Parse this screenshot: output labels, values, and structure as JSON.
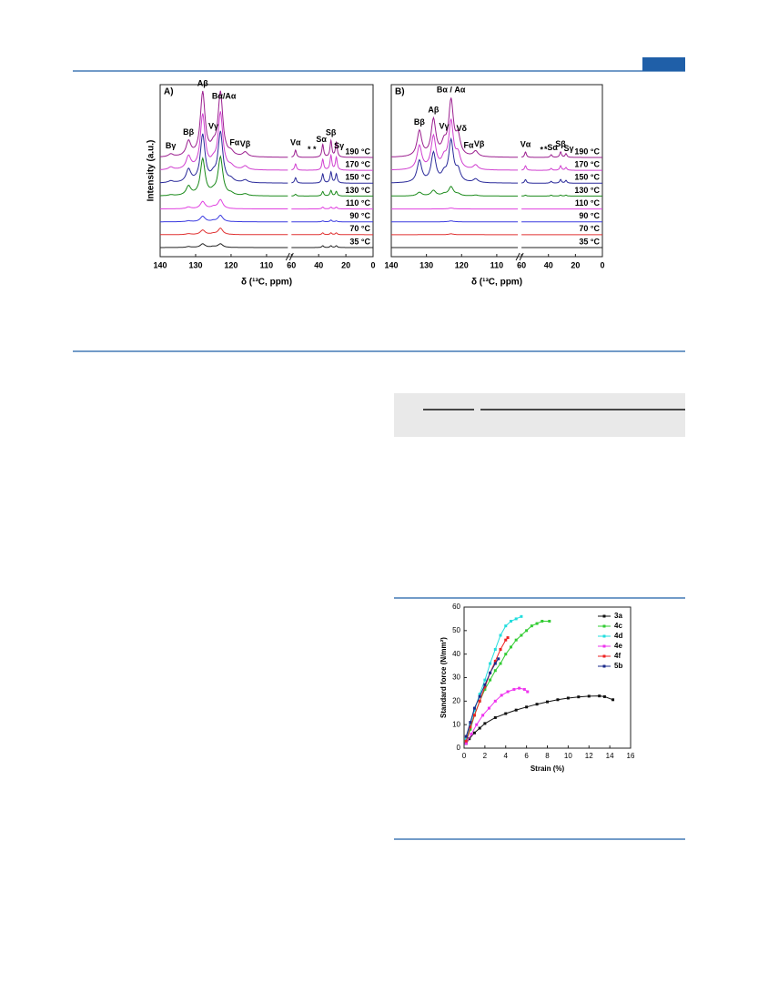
{
  "chart_data": [
    {
      "type": "spectrum",
      "panel": "A)",
      "y_label": "Intensity (a.u.)",
      "x_label": "δ (¹³C, ppm)",
      "xlim": [
        140,
        0
      ],
      "x_break": [
        104,
        60
      ],
      "xticks": [
        140,
        130,
        120,
        110,
        60,
        40,
        20,
        0
      ],
      "x": [
        137,
        132,
        128,
        125,
        123,
        120,
        116,
        57,
        37,
        31,
        27
      ],
      "series": [
        {
          "name": "190 °C",
          "color": "#9b1f8f",
          "values": [
            3,
            16,
            70,
            8,
            70,
            4,
            5,
            8,
            14,
            18,
            16
          ]
        },
        {
          "name": "170 °C",
          "color": "#d040d0",
          "values": [
            3,
            14,
            60,
            6,
            62,
            3,
            4,
            7,
            12,
            16,
            14
          ]
        },
        {
          "name": "150 °C",
          "color": "#2a2a9a",
          "values": [
            2,
            14,
            52,
            6,
            55,
            3,
            3,
            6,
            10,
            12,
            10
          ]
        },
        {
          "name": "130 °C",
          "color": "#1a8a1a",
          "values": [
            1,
            10,
            40,
            3,
            42,
            2,
            2,
            2,
            5,
            6,
            5
          ]
        },
        {
          "name": "110 °C",
          "color": "#e040e0",
          "values": [
            0,
            2,
            8,
            2,
            10,
            0,
            0,
            0,
            2,
            2,
            2
          ]
        },
        {
          "name": "90 °C",
          "color": "#3a3ae0",
          "values": [
            0,
            1,
            6,
            1,
            7,
            0,
            0,
            0,
            1,
            2,
            1
          ]
        },
        {
          "name": "70 °C",
          "color": "#e03030",
          "values": [
            0,
            1,
            5,
            1,
            7,
            0,
            0,
            0,
            2,
            2,
            2
          ]
        },
        {
          "name": "35 °C",
          "color": "#222222",
          "values": [
            0,
            1,
            4,
            1,
            4,
            0,
            0,
            0,
            2,
            2,
            2
          ]
        }
      ],
      "peak_labels": [
        {
          "text": "Bγ",
          "ppm": 137
        },
        {
          "text": "Bβ",
          "ppm": 132
        },
        {
          "text": "Aβ",
          "ppm": 128
        },
        {
          "text": "Vγ",
          "ppm": 125
        },
        {
          "text": "Bα/Aα",
          "ppm": 122
        },
        {
          "text": "Fα",
          "ppm": 119
        },
        {
          "text": "Vβ",
          "ppm": 116
        },
        {
          "text": "Vα",
          "ppm": 57
        },
        {
          "text": "*",
          "ppm": 47
        },
        {
          "text": "*",
          "ppm": 43
        },
        {
          "text": "Sα",
          "ppm": 38
        },
        {
          "text": "Sβ",
          "ppm": 31
        },
        {
          "text": "Sγ",
          "ppm": 25
        }
      ]
    },
    {
      "type": "spectrum",
      "panel": "B)",
      "x_label": "δ (¹³C, ppm)",
      "xlim": [
        140,
        0
      ],
      "x_break": [
        104,
        60
      ],
      "xticks": [
        140,
        130,
        120,
        110,
        60,
        40,
        20,
        0
      ],
      "x": [
        132,
        128,
        125,
        123,
        121,
        116,
        57,
        38,
        31,
        27
      ],
      "series": [
        {
          "name": "190 °C",
          "color": "#9b1f8f",
          "values": [
            28,
            40,
            12,
            60,
            20,
            6,
            6,
            3,
            6,
            4
          ]
        },
        {
          "name": "170 °C",
          "color": "#d040d0",
          "values": [
            26,
            36,
            10,
            52,
            15,
            5,
            5,
            2,
            5,
            3
          ]
        },
        {
          "name": "150 °C",
          "color": "#2a2a9a",
          "values": [
            24,
            32,
            8,
            45,
            12,
            4,
            4,
            2,
            4,
            3
          ]
        },
        {
          "name": "130 °C",
          "color": "#1a8a1a",
          "values": [
            4,
            6,
            2,
            10,
            2,
            1,
            1,
            1,
            1,
            1
          ]
        },
        {
          "name": "110 °C",
          "color": "#e040e0",
          "values": [
            0,
            0,
            0,
            1,
            0,
            0,
            0,
            0,
            0,
            0
          ]
        },
        {
          "name": "90 °C",
          "color": "#3a3ae0",
          "values": [
            0,
            0,
            0,
            1,
            0,
            0,
            0,
            0,
            0,
            0
          ]
        },
        {
          "name": "70 °C",
          "color": "#e03030",
          "values": [
            0,
            0,
            0,
            1,
            0,
            0,
            0,
            0,
            0,
            0
          ]
        },
        {
          "name": "35 °C",
          "color": "#222222",
          "values": [
            0,
            0,
            0,
            0,
            0,
            0,
            0,
            0,
            0,
            0
          ]
        }
      ],
      "peak_labels": [
        {
          "text": "Bβ",
          "ppm": 132
        },
        {
          "text": "Aβ",
          "ppm": 128
        },
        {
          "text": "Vγ",
          "ppm": 125
        },
        {
          "text": "Bα / Aα",
          "ppm": 123
        },
        {
          "text": "Vδ",
          "ppm": 120
        },
        {
          "text": "Fα",
          "ppm": 118
        },
        {
          "text": "Vβ",
          "ppm": 115
        },
        {
          "text": "Vα",
          "ppm": 57
        },
        {
          "text": "*",
          "ppm": 45
        },
        {
          "text": "*",
          "ppm": 42
        },
        {
          "text": "Sα",
          "ppm": 37
        },
        {
          "text": "Sβ",
          "ppm": 31
        },
        {
          "text": "Sγ",
          "ppm": 25
        }
      ]
    },
    {
      "type": "line",
      "x_label": "Strain (%)",
      "y_label": "Standard force (N/mm²)",
      "xlim": [
        0,
        16
      ],
      "xticks": [
        0,
        2,
        4,
        6,
        8,
        10,
        12,
        14,
        16
      ],
      "ylim": [
        0,
        60
      ],
      "yticks": [
        0,
        10,
        20,
        30,
        40,
        50,
        60
      ],
      "legend": "upper right",
      "series": [
        {
          "name": "3a",
          "color": "#111111",
          "x": [
            0.2,
            0.5,
            1,
            1.5,
            2,
            3,
            4,
            5,
            6,
            7,
            8,
            9,
            10,
            11,
            12,
            13,
            13.5,
            14.3
          ],
          "values": [
            2,
            4,
            6.5,
            8.5,
            10.5,
            13,
            14.7,
            16.2,
            17.5,
            18.7,
            19.7,
            20.6,
            21.3,
            21.8,
            22.1,
            22.2,
            21.9,
            20.6
          ]
        },
        {
          "name": "4c",
          "color": "#33cc33",
          "x": [
            0.2,
            0.6,
            1,
            1.5,
            2,
            2.5,
            3,
            3.5,
            4,
            4.5,
            5,
            5.5,
            6,
            6.5,
            7,
            7.5,
            8.2
          ],
          "values": [
            3,
            8,
            14,
            20,
            25,
            29,
            33,
            36,
            40,
            43,
            46,
            48,
            50,
            52,
            53,
            54,
            54
          ]
        },
        {
          "name": "4d",
          "color": "#22dddd",
          "x": [
            0.2,
            0.6,
            1,
            1.5,
            2,
            2.5,
            3,
            3.5,
            4,
            4.5,
            5,
            5.5
          ],
          "values": [
            4,
            10,
            16,
            23,
            29,
            36,
            42,
            48,
            52,
            54,
            55,
            56
          ]
        },
        {
          "name": "4e",
          "color": "#ee33ee",
          "x": [
            0.2,
            0.7,
            1.2,
            1.8,
            2.4,
            3,
            3.6,
            4.2,
            4.8,
            5.3,
            5.8,
            6.1
          ],
          "values": [
            2,
            6,
            10,
            14,
            17,
            20,
            22.5,
            24,
            25,
            25.5,
            25,
            24
          ]
        },
        {
          "name": "4f",
          "color": "#ee2222",
          "x": [
            0.2,
            0.6,
            1,
            1.5,
            2,
            2.5,
            3,
            3.5,
            4,
            4.2
          ],
          "values": [
            3,
            9,
            14,
            20,
            26,
            32,
            37,
            42,
            46,
            47
          ]
        },
        {
          "name": "5b",
          "color": "#1a2a8a",
          "x": [
            0.2,
            0.6,
            1,
            1.5,
            2,
            2.5,
            3,
            3.3
          ],
          "values": [
            5,
            11,
            17,
            22,
            27,
            32,
            36,
            38
          ]
        }
      ]
    }
  ]
}
